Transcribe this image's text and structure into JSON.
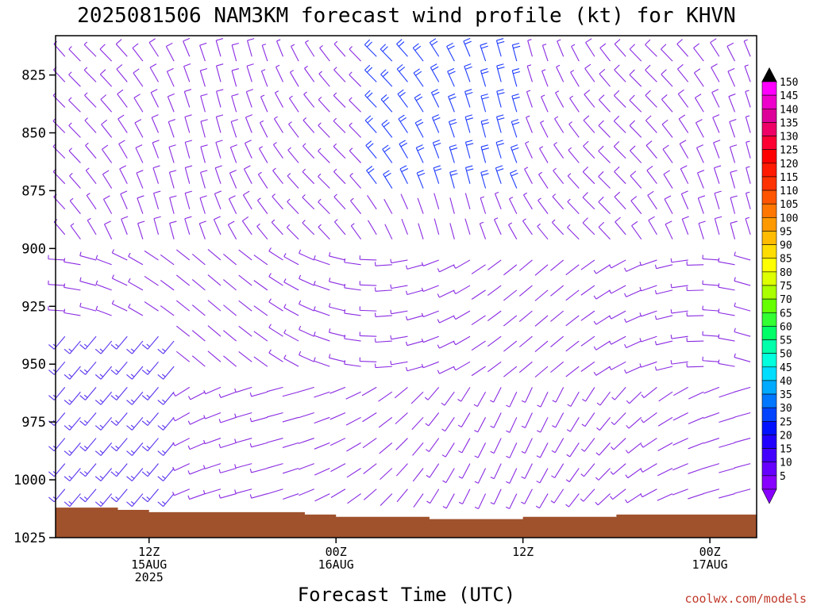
{
  "title": "2025081506 NAM3KM forecast wind profile (kt) for KHVN",
  "credit": "coolwx.com/models",
  "chart_data": {
    "type": "wind-barb-profile",
    "title": "2025081506 NAM3KM forecast wind profile (kt) for KHVN",
    "xlabel": "Forecast Time (UTC)",
    "ylabel": "",
    "y_axis": {
      "ticks": [
        "825",
        "850",
        "875",
        "900",
        "925",
        "950",
        "975",
        "1000",
        "1025"
      ],
      "range": [
        808,
        1025
      ],
      "inverted": true
    },
    "x_axis": {
      "range_hours": [
        0,
        45
      ],
      "ticks": [
        {
          "hour": 6,
          "lines": [
            "12Z",
            "15AUG",
            "2025"
          ]
        },
        {
          "hour": 18,
          "lines": [
            "00Z",
            "16AUG"
          ]
        },
        {
          "hour": 30,
          "lines": [
            "12Z"
          ]
        },
        {
          "hour": 42,
          "lines": [
            "00Z",
            "17AUG"
          ]
        },
        {
          "hour": 54,
          "lines": [
            "12Z"
          ]
        }
      ]
    },
    "surface_pressure": [
      {
        "hour": 0,
        "p": 1012
      },
      {
        "hour": 4,
        "p": 1013
      },
      {
        "hour": 6,
        "p": 1014
      },
      {
        "hour": 12,
        "p": 1014
      },
      {
        "hour": 16,
        "p": 1015
      },
      {
        "hour": 18,
        "p": 1016
      },
      {
        "hour": 21,
        "p": 1016
      },
      {
        "hour": 24,
        "p": 1017
      },
      {
        "hour": 30,
        "p": 1016
      },
      {
        "hour": 33,
        "p": 1016
      },
      {
        "hour": 36,
        "p": 1015
      },
      {
        "hour": 42,
        "p": 1015
      },
      {
        "hour": 48,
        "p": 1013
      },
      {
        "hour": 54,
        "p": 1012
      },
      {
        "hour": 60,
        "p": 1010
      }
    ],
    "colorbar": {
      "labels": [
        "150",
        "145",
        "140",
        "135",
        "130",
        "125",
        "120",
        "115",
        "110",
        "105",
        "100",
        "95",
        "90",
        "85",
        "80",
        "75",
        "70",
        "65",
        "60",
        "55",
        "50",
        "45",
        "40",
        "35",
        "30",
        "25",
        "20",
        "15",
        "10",
        "5"
      ],
      "colors": [
        "#ff00ff",
        "#ee00cc",
        "#dd0099",
        "#ee0066",
        "#ff0033",
        "#ff0000",
        "#ff1a00",
        "#ff3300",
        "#ff5500",
        "#ff7700",
        "#ff9900",
        "#ffbb00",
        "#ffdd00",
        "#ffff00",
        "#ddff00",
        "#aaff00",
        "#66ff00",
        "#33ff33",
        "#00ff66",
        "#00ffaa",
        "#00ffdd",
        "#00ddff",
        "#00aaff",
        "#0077ff",
        "#0044ff",
        "#0011ff",
        "#2200ff",
        "#4400ff",
        "#6600ff",
        "#8800ff"
      ]
    },
    "wind_colors": {
      "light": "#8a2be2",
      "moderate": "#5a33ee",
      "strong": "#1f3cff"
    }
  }
}
